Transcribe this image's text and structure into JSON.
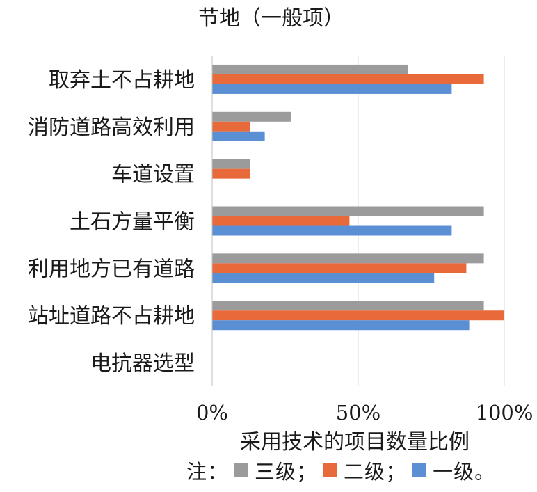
{
  "chart_data": {
    "type": "bar",
    "orientation": "horizontal",
    "title": "节地（一般项）",
    "xlabel": "采用技术的项目数量比例",
    "ylabel": "",
    "xlim": [
      0,
      100
    ],
    "x_ticks": [
      "0%",
      "50%",
      "100%"
    ],
    "grid": "vertical",
    "categories": [
      "取弃土不占耕地",
      "消防道路高效利用",
      "车道设置",
      "土石方量平衡",
      "利用地方已有道路",
      "站址道路不占耕地",
      "电抗器选型"
    ],
    "series": [
      {
        "name": "三级",
        "color": "#9b9b9b",
        "values": [
          67,
          27,
          13,
          93,
          93,
          93,
          0
        ]
      },
      {
        "name": "二级",
        "color": "#e8693a",
        "values": [
          93,
          13,
          13,
          47,
          87,
          100,
          0
        ]
      },
      {
        "name": "一级",
        "color": "#5b8fd4",
        "values": [
          82,
          18,
          0,
          82,
          76,
          88,
          0
        ]
      }
    ],
    "legend": {
      "position": "bottom",
      "prefix": "注：",
      "separator": "；",
      "suffix": "。"
    }
  }
}
